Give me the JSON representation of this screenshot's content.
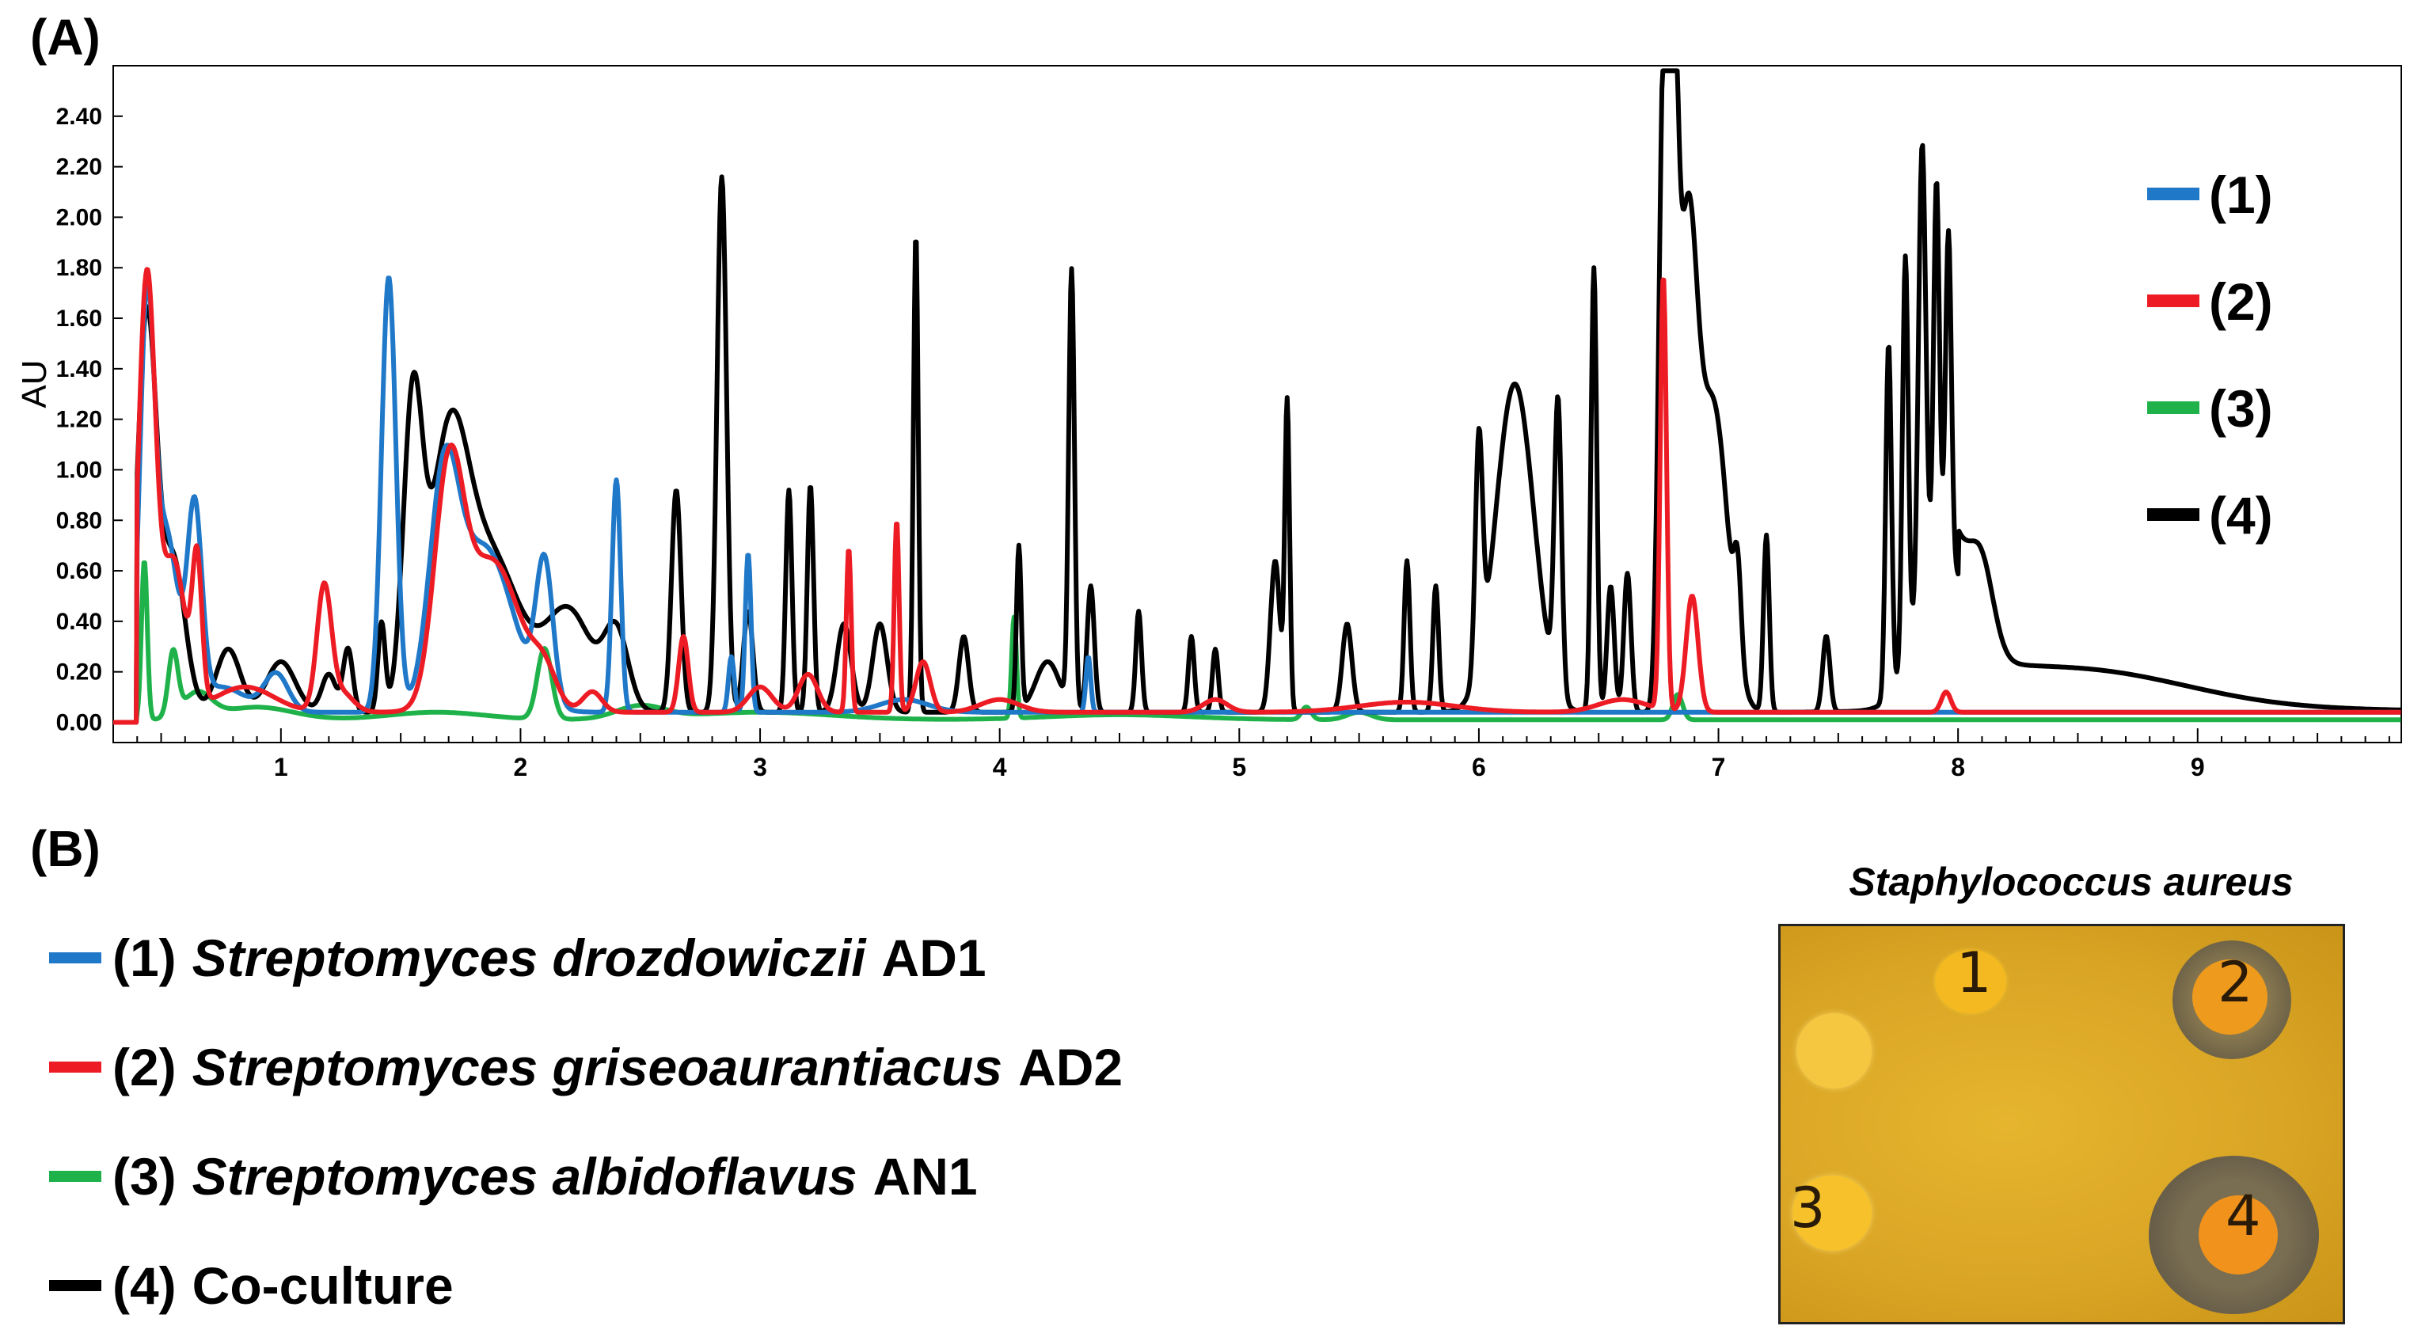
{
  "panel_a_label": "(A)",
  "panel_b_label": "(B)",
  "chart_data": {
    "type": "line",
    "title": "",
    "xlabel": "",
    "ylabel": "AU",
    "xlim": [
      0.3,
      9.85
    ],
    "ylim": [
      -0.08,
      2.6
    ],
    "x_ticks": [
      "1",
      "2",
      "3",
      "4",
      "5",
      "6",
      "7",
      "8",
      "9"
    ],
    "y_ticks": [
      "0.00",
      "0.20",
      "0.40",
      "0.60",
      "0.80",
      "1.00",
      "1.20",
      "1.40",
      "1.60",
      "1.80",
      "2.00",
      "2.20",
      "2.40"
    ],
    "grid": false,
    "legend_position": "right",
    "series": [
      {
        "name": "(1)",
        "color": "#1f78c8",
        "baseline": 0.04,
        "onset": 0.4,
        "peaks": [
          [
            0.44,
            1.5,
            0.03
          ],
          [
            0.52,
            0.7,
            0.05
          ],
          [
            0.64,
            0.76,
            0.03
          ],
          [
            0.75,
            0.1,
            0.1
          ],
          [
            0.98,
            0.15,
            0.05
          ],
          [
            1.45,
            1.72,
            0.03
          ],
          [
            1.68,
            0.8,
            0.06
          ],
          [
            1.85,
            0.65,
            0.12
          ],
          [
            2.1,
            0.55,
            0.035
          ],
          [
            2.4,
            0.92,
            0.018
          ],
          [
            2.88,
            0.22,
            0.012
          ],
          [
            2.95,
            0.63,
            0.012
          ],
          [
            3.6,
            0.05,
            0.1
          ],
          [
            4.37,
            0.22,
            0.01
          ]
        ]
      },
      {
        "name": "(2)",
        "color": "#ed1c24",
        "baseline": 0.04,
        "onset": 0.4,
        "peaks": [
          [
            0.44,
            1.7,
            0.035
          ],
          [
            0.55,
            0.6,
            0.05
          ],
          [
            0.65,
            0.55,
            0.02
          ],
          [
            0.85,
            0.1,
            0.12
          ],
          [
            1.18,
            0.48,
            0.03
          ],
          [
            1.25,
            0.08,
            0.05
          ],
          [
            1.7,
            0.85,
            0.06
          ],
          [
            1.88,
            0.6,
            0.12
          ],
          [
            2.1,
            0.12,
            0.05
          ],
          [
            2.3,
            0.08,
            0.04
          ],
          [
            2.68,
            0.3,
            0.02
          ],
          [
            3.0,
            0.1,
            0.05
          ],
          [
            3.2,
            0.15,
            0.04
          ],
          [
            3.37,
            0.65,
            0.01
          ],
          [
            3.57,
            0.76,
            0.01
          ],
          [
            3.68,
            0.2,
            0.03
          ],
          [
            4.0,
            0.05,
            0.08
          ],
          [
            4.9,
            0.05,
            0.05
          ],
          [
            5.7,
            0.04,
            0.2
          ],
          [
            6.6,
            0.05,
            0.1
          ],
          [
            6.77,
            1.72,
            0.013
          ],
          [
            6.89,
            0.46,
            0.025
          ],
          [
            7.95,
            0.08,
            0.02
          ]
        ]
      },
      {
        "name": "(3)",
        "color": "#1fb24a",
        "baseline": 0.01,
        "onset": 0.4,
        "peaks": [
          [
            0.43,
            0.63,
            0.012
          ],
          [
            0.55,
            0.25,
            0.02
          ],
          [
            0.65,
            0.1,
            0.06
          ],
          [
            0.9,
            0.05,
            0.15
          ],
          [
            1.65,
            0.03,
            0.2
          ],
          [
            2.1,
            0.28,
            0.03
          ],
          [
            2.5,
            0.05,
            0.1
          ],
          [
            3.0,
            0.03,
            0.3
          ],
          [
            4.06,
            0.4,
            0.01
          ],
          [
            4.5,
            0.02,
            0.3
          ],
          [
            5.28,
            0.05,
            0.02
          ],
          [
            5.5,
            0.03,
            0.05
          ],
          [
            6.83,
            0.1,
            0.02
          ]
        ]
      },
      {
        "name": "(4)",
        "color": "#000000",
        "baseline": 0.04,
        "onset": 0.4,
        "peaks": [
          [
            0.44,
            1.55,
            0.04
          ],
          [
            0.55,
            0.6,
            0.05
          ],
          [
            0.78,
            0.25,
            0.05
          ],
          [
            1.0,
            0.2,
            0.06
          ],
          [
            1.2,
            0.15,
            0.03
          ],
          [
            1.28,
            0.25,
            0.02
          ],
          [
            1.42,
            0.35,
            0.015
          ],
          [
            1.55,
            1.15,
            0.04
          ],
          [
            1.7,
            0.98,
            0.08
          ],
          [
            1.88,
            0.6,
            0.12
          ],
          [
            2.2,
            0.4,
            0.1
          ],
          [
            2.4,
            0.3,
            0.05
          ],
          [
            2.65,
            0.88,
            0.02
          ],
          [
            2.84,
            2.12,
            0.02
          ],
          [
            2.95,
            0.4,
            0.02
          ],
          [
            3.12,
            0.88,
            0.013
          ],
          [
            3.21,
            0.9,
            0.013
          ],
          [
            3.35,
            0.35,
            0.03
          ],
          [
            3.5,
            0.35,
            0.03
          ],
          [
            3.65,
            1.9,
            0.01
          ],
          [
            3.85,
            0.3,
            0.02
          ],
          [
            4.08,
            0.65,
            0.01
          ],
          [
            4.3,
            1.73,
            0.012
          ],
          [
            4.2,
            0.2,
            0.05
          ],
          [
            4.38,
            0.5,
            0.015
          ],
          [
            4.58,
            0.4,
            0.012
          ],
          [
            4.8,
            0.3,
            0.012
          ],
          [
            4.9,
            0.25,
            0.012
          ],
          [
            5.15,
            0.6,
            0.02
          ],
          [
            5.2,
            1.22,
            0.01
          ],
          [
            5.45,
            0.35,
            0.02
          ],
          [
            5.7,
            0.6,
            0.012
          ],
          [
            5.82,
            0.5,
            0.012
          ],
          [
            6.0,
            0.9,
            0.015
          ],
          [
            6.15,
            1.3,
            0.08
          ],
          [
            6.33,
            1.15,
            0.015
          ],
          [
            6.48,
            1.76,
            0.012
          ],
          [
            6.55,
            0.5,
            0.015
          ],
          [
            6.62,
            0.55,
            0.015
          ],
          [
            6.77,
            2.36,
            0.02
          ],
          [
            6.81,
            2.2,
            0.02
          ],
          [
            6.87,
            1.8,
            0.04
          ],
          [
            6.98,
            1.2,
            0.06
          ],
          [
            7.08,
            0.35,
            0.015
          ],
          [
            7.2,
            0.7,
            0.012
          ],
          [
            7.45,
            0.3,
            0.015
          ],
          [
            7.71,
            1.4,
            0.012
          ],
          [
            7.78,
            1.6,
            0.012
          ],
          [
            7.85,
            1.8,
            0.015
          ],
          [
            7.91,
            1.5,
            0.012
          ],
          [
            7.96,
            1.3,
            0.012
          ],
          [
            7.93,
            0.6,
            0.1
          ],
          [
            8.1,
            0.3,
            0.05
          ],
          [
            8.6,
            0.1,
            0.4
          ]
        ],
        "tail": {
          "start": 8.0,
          "end": 9.85,
          "amp": 0.3,
          "decay": 0.6
        }
      }
    ]
  },
  "legend_b": [
    {
      "num": "(1)",
      "species": "Streptomyces drozdowiczii",
      "strain": "AD1",
      "color": "#1f78c8"
    },
    {
      "num": "(2)",
      "species": "Streptomyces griseoaurantiacus",
      "strain": "AD2",
      "color": "#ed1c24"
    },
    {
      "num": "(3)",
      "species": "Streptomyces albidoflavus",
      "strain": "AN1",
      "color": "#1fb24a"
    },
    {
      "num": "(4)",
      "species": "Co-culture",
      "strain": "",
      "color": "#000000"
    }
  ],
  "plate": {
    "title": "Staphylococcus aureus",
    "labels": [
      "1",
      "2",
      "3",
      "4"
    ]
  }
}
